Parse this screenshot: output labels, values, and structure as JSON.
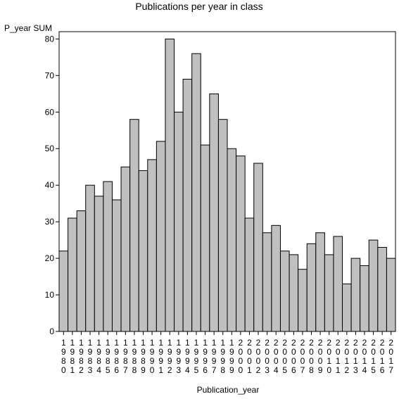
{
  "chart_data": {
    "type": "bar",
    "title": "Publications per year in class",
    "ylabel": "P_year SUM",
    "xlabel": "Publication_year",
    "categories": [
      "1980",
      "1981",
      "1982",
      "1983",
      "1984",
      "1985",
      "1986",
      "1987",
      "1988",
      "1989",
      "1990",
      "1991",
      "1992",
      "1993",
      "1994",
      "1995",
      "1996",
      "1997",
      "1998",
      "1999",
      "2000",
      "2001",
      "2002",
      "2003",
      "2004",
      "2005",
      "2006",
      "2007",
      "2008",
      "2009",
      "2010",
      "2011",
      "2012",
      "2013",
      "2014",
      "2015",
      "2016",
      "2017"
    ],
    "values": [
      22,
      31,
      33,
      40,
      37,
      41,
      36,
      45,
      58,
      44,
      47,
      52,
      80,
      60,
      69,
      76,
      51,
      65,
      58,
      50,
      48,
      31,
      46,
      27,
      29,
      22,
      21,
      17,
      24,
      27,
      21,
      26,
      13,
      20,
      18,
      25,
      23,
      20
    ],
    "ylim": [
      0,
      82
    ],
    "yticks": [
      0,
      10,
      20,
      30,
      40,
      50,
      60,
      70,
      80
    ],
    "grid": false,
    "legend": "none",
    "colors": {
      "bar_fill": "#c0c0c0",
      "bar_stroke": "#000000",
      "axis": "#000000"
    }
  }
}
